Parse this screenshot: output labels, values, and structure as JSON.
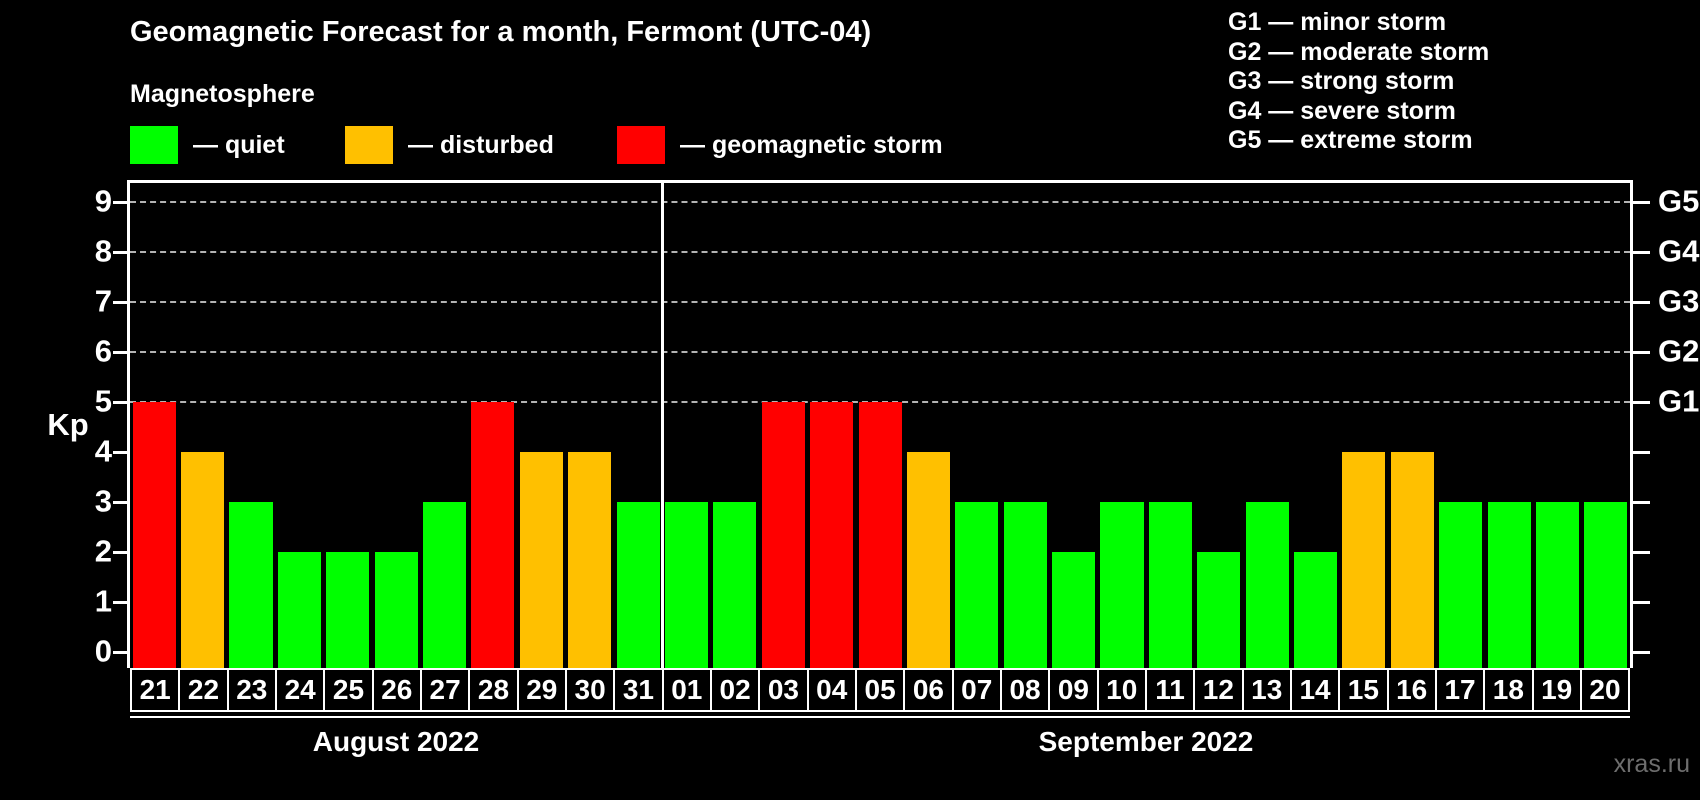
{
  "title": "Geomagnetic Forecast for a month, Fermont (UTC-04)",
  "legend": {
    "title": "Magnetosphere",
    "items": [
      {
        "name": "quiet",
        "label": "— quiet",
        "color": "#00ff00"
      },
      {
        "name": "disturbed",
        "label": "— disturbed",
        "color": "#ffc000"
      },
      {
        "name": "storm",
        "label": "— geomagnetic storm",
        "color": "#ff0000"
      }
    ]
  },
  "g_scale_legend": {
    "items": [
      "G1 — minor storm",
      "G2 — moderate storm",
      "G3 — strong storm",
      "G4 — severe storm",
      "G5 — extreme storm"
    ]
  },
  "watermark": "xras.ru",
  "chart_data": {
    "type": "bar",
    "title": "Geomagnetic Forecast for a month, Fermont (UTC-04)",
    "ylabel": "Kp",
    "ylim": [
      -0.35,
      9.4
    ],
    "yticks": [
      0,
      1,
      2,
      3,
      4,
      5,
      6,
      7,
      8,
      9
    ],
    "grid": "dashed horizontal gridlines at Kp 5-9 only",
    "grid_kp_levels": [
      5,
      6,
      7,
      8,
      9
    ],
    "legend_position": "top-left",
    "right_axis": [
      {
        "kp": 5,
        "label": "G1"
      },
      {
        "kp": 6,
        "label": "G2"
      },
      {
        "kp": 7,
        "label": "G3"
      },
      {
        "kp": 8,
        "label": "G4"
      },
      {
        "kp": 9,
        "label": "G5"
      }
    ],
    "colors": {
      "quiet": "#00ff00",
      "disturbed": "#ffc000",
      "storm": "#ff0000"
    },
    "months": [
      {
        "label": "August 2022",
        "days": [
          {
            "day": "21",
            "kp": 5,
            "level": "storm"
          },
          {
            "day": "22",
            "kp": 4,
            "level": "disturbed"
          },
          {
            "day": "23",
            "kp": 3,
            "level": "quiet"
          },
          {
            "day": "24",
            "kp": 2,
            "level": "quiet"
          },
          {
            "day": "25",
            "kp": 2,
            "level": "quiet"
          },
          {
            "day": "26",
            "kp": 2,
            "level": "quiet"
          },
          {
            "day": "27",
            "kp": 3,
            "level": "quiet"
          },
          {
            "day": "28",
            "kp": 5,
            "level": "storm"
          },
          {
            "day": "29",
            "kp": 4,
            "level": "disturbed"
          },
          {
            "day": "30",
            "kp": 4,
            "level": "disturbed"
          },
          {
            "day": "31",
            "kp": 3,
            "level": "quiet"
          }
        ]
      },
      {
        "label": "September 2022",
        "days": [
          {
            "day": "01",
            "kp": 3,
            "level": "quiet"
          },
          {
            "day": "02",
            "kp": 3,
            "level": "quiet"
          },
          {
            "day": "03",
            "kp": 5,
            "level": "storm"
          },
          {
            "day": "04",
            "kp": 5,
            "level": "storm"
          },
          {
            "day": "05",
            "kp": 5,
            "level": "storm"
          },
          {
            "day": "06",
            "kp": 4,
            "level": "disturbed"
          },
          {
            "day": "07",
            "kp": 3,
            "level": "quiet"
          },
          {
            "day": "08",
            "kp": 3,
            "level": "quiet"
          },
          {
            "day": "09",
            "kp": 2,
            "level": "quiet"
          },
          {
            "day": "10",
            "kp": 3,
            "level": "quiet"
          },
          {
            "day": "11",
            "kp": 3,
            "level": "quiet"
          },
          {
            "day": "12",
            "kp": 2,
            "level": "quiet"
          },
          {
            "day": "13",
            "kp": 3,
            "level": "quiet"
          },
          {
            "day": "14",
            "kp": 2,
            "level": "quiet"
          },
          {
            "day": "15",
            "kp": 4,
            "level": "disturbed"
          },
          {
            "day": "16",
            "kp": 4,
            "level": "disturbed"
          },
          {
            "day": "17",
            "kp": 3,
            "level": "quiet"
          },
          {
            "day": "18",
            "kp": 3,
            "level": "quiet"
          },
          {
            "day": "19",
            "kp": 3,
            "level": "quiet"
          },
          {
            "day": "20",
            "kp": 3,
            "level": "quiet"
          }
        ]
      }
    ]
  }
}
